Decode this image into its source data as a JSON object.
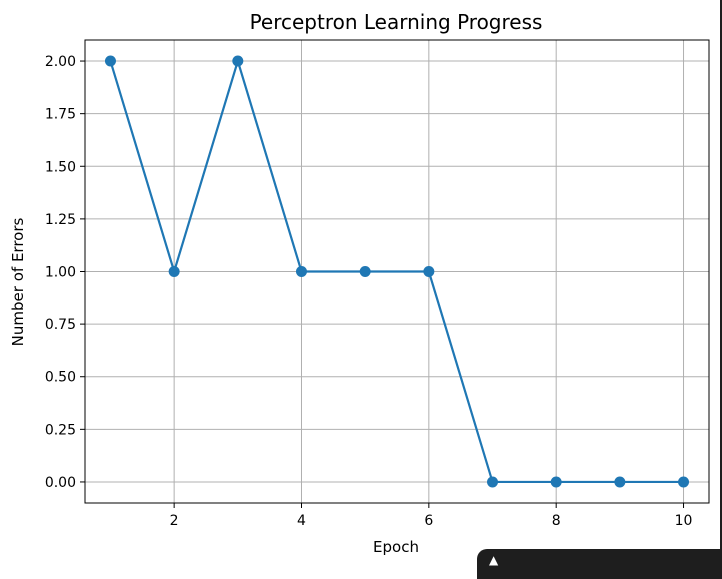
{
  "chart_data": {
    "type": "line",
    "title": "Perceptron Learning Progress",
    "xlabel": "Epoch",
    "ylabel": "Number of Errors",
    "x": [
      1,
      2,
      3,
      4,
      5,
      6,
      7,
      8,
      9,
      10
    ],
    "series": [
      {
        "values": [
          2,
          1,
          2,
          1,
          1,
          1,
          0,
          0,
          0,
          0
        ],
        "color": "#1f77b4",
        "marker": "circle"
      }
    ],
    "xlim": [
      0.6,
      10.4
    ],
    "ylim": [
      -0.1,
      2.1
    ],
    "xticks": [
      2,
      4,
      6,
      8,
      10
    ],
    "xtick_labels": [
      "2",
      "4",
      "6",
      "8",
      "10"
    ],
    "yticks": [
      0,
      0.25,
      0.5,
      0.75,
      1.0,
      1.25,
      1.5,
      1.75,
      2.0
    ],
    "ytick_labels": [
      "0.00",
      "0.25",
      "0.50",
      "0.75",
      "1.00",
      "1.25",
      "1.50",
      "1.75",
      "2.00"
    ],
    "grid": true,
    "legend": "none"
  },
  "colors": {
    "line": "#1f77b4",
    "grid": "#b0b0b0",
    "axes": "#000000",
    "overlay": "#1e1e1e"
  }
}
